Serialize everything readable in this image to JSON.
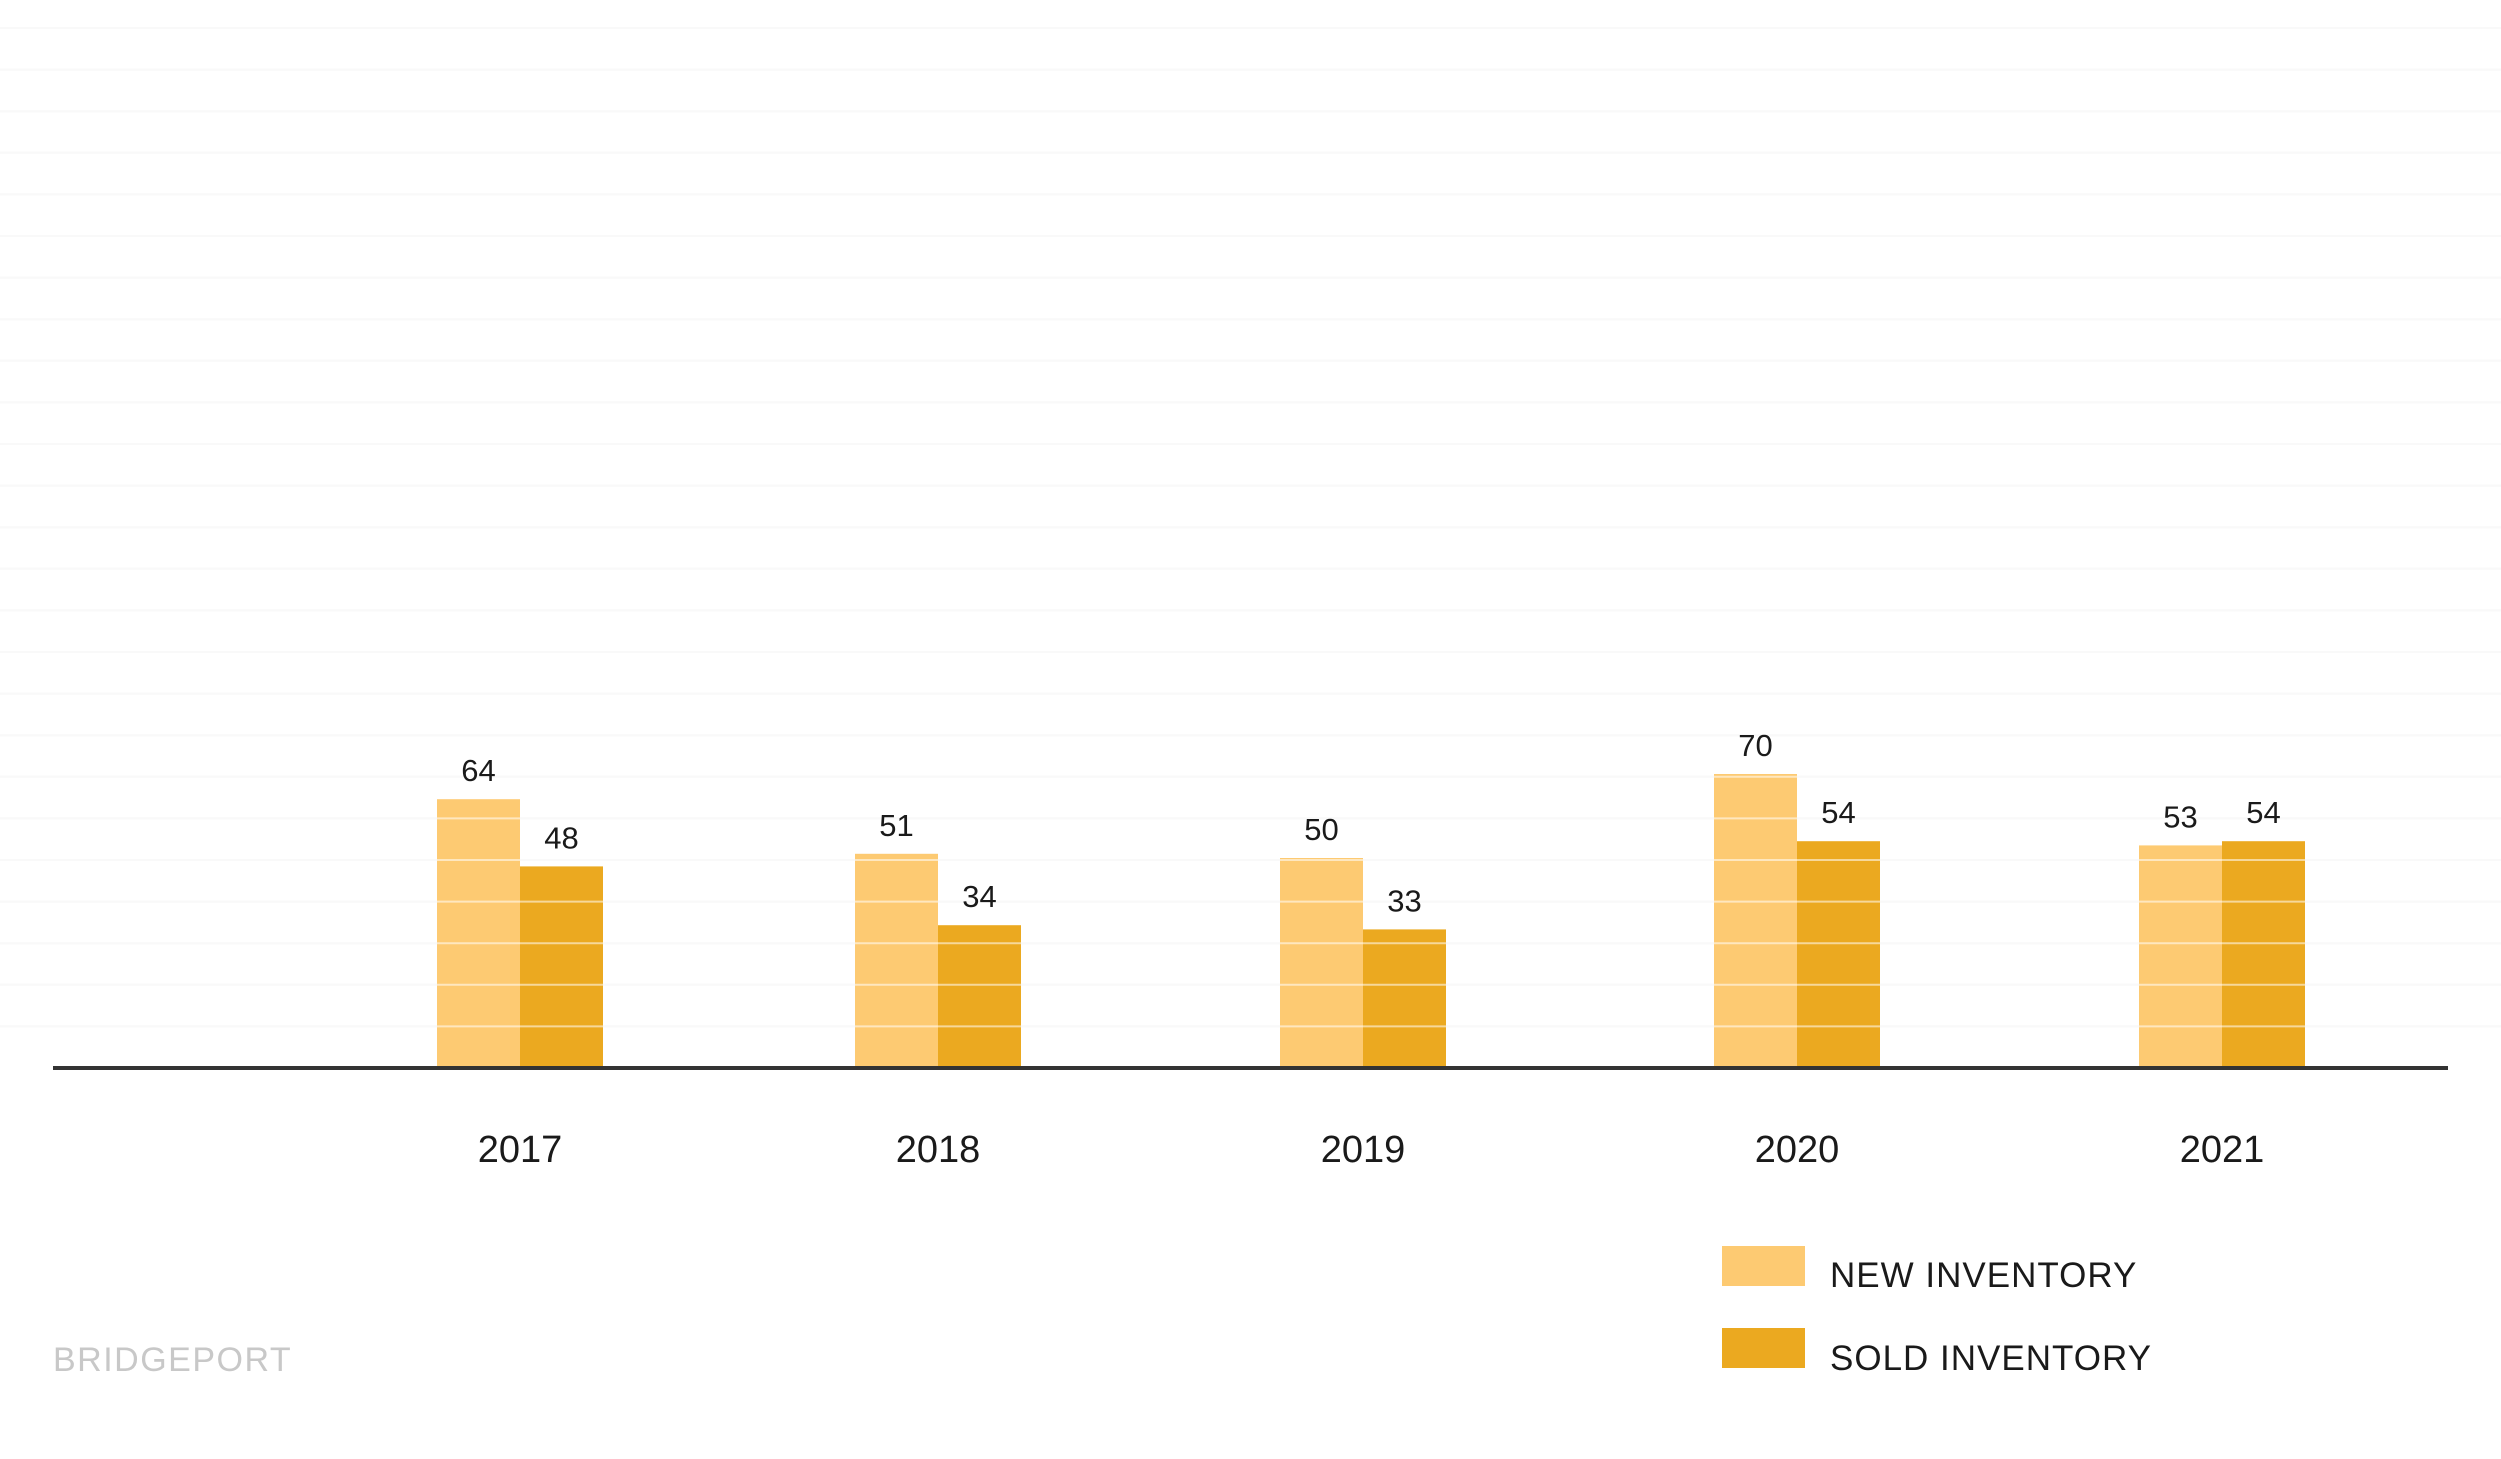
{
  "chart_data": {
    "type": "bar",
    "categories": [
      "2017",
      "2018",
      "2019",
      "2020",
      "2021"
    ],
    "series": [
      {
        "name": "NEW INVENTORY",
        "values": [
          64,
          51,
          50,
          70,
          53
        ],
        "color": "#fdca72"
      },
      {
        "name": "SOLD INVENTORY",
        "values": [
          48,
          34,
          33,
          54,
          54
        ],
        "color": "#eba920"
      }
    ],
    "ylim": [
      0,
      250
    ],
    "grid": true,
    "axis_color": "#333333",
    "legend_position": "bottom-right"
  },
  "watermark": "BRIDGEPORT"
}
